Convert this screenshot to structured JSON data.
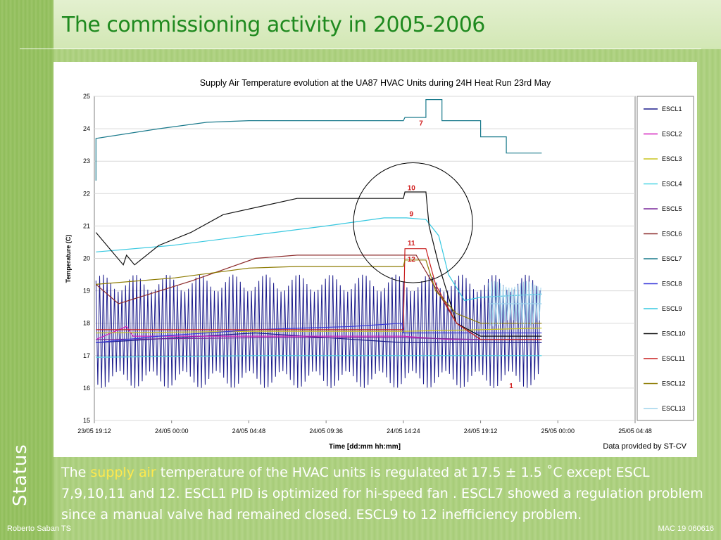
{
  "slide": {
    "title": "The commissioning activity in 2005-2006",
    "section_label": "Status",
    "caption_prefix": "The ",
    "caption_highlight": "supply air",
    "caption_rest": " temperature of the HVAC units is regulated at 17.5 ± 1.5 ˚C except ESCL 7,9,10,11 and 12. ESCL1 PID is optimized for hi-speed fan . ESCL7 showed a regulation problem since a manual valve had remained closed. ESCL9 to 12 inefficiency problem.",
    "footer_left": "Roberto Saban TS",
    "footer_right": "MAC 19  060616"
  },
  "colors": {
    "title": "#1f8a1f",
    "highlight": "#ffe94d",
    "background": "#a9cd7c"
  },
  "chart_data": {
    "type": "line",
    "title": "Supply Air Temperature evolution at the UA87 HVAC Units during 24H Heat Run 23rd May",
    "xlabel": "Time [dd:mm hh:mm]",
    "ylabel": "Temperature (C)",
    "source_note": "Data provided by ST-CV",
    "ylim": [
      15,
      25
    ],
    "y_ticks": [
      15,
      16,
      17,
      18,
      19,
      20,
      21,
      22,
      23,
      24,
      25
    ],
    "x_range_hours": [
      0,
      33.6
    ],
    "x_ticks": [
      {
        "label": "23/05 19:12",
        "h": 0
      },
      {
        "label": "24/05 00:00",
        "h": 4.8
      },
      {
        "label": "24/05 04:48",
        "h": 9.6
      },
      {
        "label": "24/05 09:36",
        "h": 14.4
      },
      {
        "label": "24/05 14:24",
        "h": 19.2
      },
      {
        "label": "24/05 19:12",
        "h": 24
      },
      {
        "label": "25/05 00:00",
        "h": 28.8
      },
      {
        "label": "25/05 04:48",
        "h": 33.6
      }
    ],
    "grid": "horizontal",
    "legend_position": "right",
    "annotations": [
      {
        "text": "7",
        "x": 20.3,
        "y": 24.1
      },
      {
        "text": "10",
        "x": 19.7,
        "y": 22.1
      },
      {
        "text": "9",
        "x": 19.7,
        "y": 21.3
      },
      {
        "text": "11",
        "x": 19.7,
        "y": 20.4
      },
      {
        "text": "12",
        "x": 19.7,
        "y": 19.9
      },
      {
        "text": "1",
        "x": 25.9,
        "y": 16.0
      }
    ],
    "highlight_circle": {
      "cx": 19.8,
      "cy": 21.1,
      "rx": 3.7,
      "ry": 1.85
    },
    "series": [
      {
        "name": "ESCL1",
        "color": "#1c1c8c",
        "style": "oscillating",
        "base": 17.75,
        "amp": 1.75,
        "start": 0.1,
        "end": 27.8,
        "points": [
          [
            0.1,
            17.4
          ],
          [
            10,
            17.7
          ],
          [
            19.2,
            17.4
          ],
          [
            22,
            17.4
          ],
          [
            27.8,
            17.4
          ]
        ]
      },
      {
        "name": "ESCL2",
        "color": "#d41fbd",
        "points": [
          [
            0.1,
            17.5
          ],
          [
            2.0,
            17.9
          ],
          [
            2.4,
            17.6
          ],
          [
            10,
            17.6
          ],
          [
            19.2,
            17.6
          ],
          [
            22,
            17.5
          ],
          [
            27.8,
            17.5
          ]
        ]
      },
      {
        "name": "ESCL3",
        "color": "#c9c41e",
        "points": [
          [
            0.1,
            17.7
          ],
          [
            10,
            17.75
          ],
          [
            19.2,
            17.75
          ],
          [
            24,
            17.8
          ],
          [
            27.8,
            17.85
          ]
        ]
      },
      {
        "name": "ESCL4",
        "color": "#4fd6e6",
        "points": [
          [
            0.1,
            16.95
          ],
          [
            10,
            17.0
          ],
          [
            19.2,
            17.0
          ],
          [
            24,
            17.0
          ],
          [
            27.8,
            17.0
          ]
        ]
      },
      {
        "name": "ESCL5",
        "color": "#7a2a9c",
        "points": [
          [
            0.1,
            17.5
          ],
          [
            10,
            17.55
          ],
          [
            19.2,
            17.55
          ],
          [
            24,
            17.5
          ],
          [
            27.8,
            17.5
          ]
        ]
      },
      {
        "name": "ESCL6",
        "color": "#8c2a2a",
        "points": [
          [
            0.1,
            19.2
          ],
          [
            1.5,
            18.6
          ],
          [
            6,
            19.3
          ],
          [
            10,
            20.0
          ],
          [
            12.6,
            20.1
          ],
          [
            19.2,
            20.1
          ],
          [
            20.0,
            20.1
          ],
          [
            22.5,
            18.0
          ],
          [
            24,
            17.5
          ],
          [
            27.8,
            17.5
          ]
        ]
      },
      {
        "name": "ESCL7",
        "color": "#1a7a8c",
        "points": [
          [
            0.1,
            22.4
          ],
          [
            0.1,
            23.7
          ],
          [
            4,
            24.0
          ],
          [
            7,
            24.2
          ],
          [
            9.6,
            24.25
          ],
          [
            16,
            24.25
          ],
          [
            19.2,
            24.25
          ],
          [
            19.3,
            24.35
          ],
          [
            20.6,
            24.35
          ],
          [
            20.6,
            24.9
          ],
          [
            21.6,
            24.9
          ],
          [
            21.6,
            24.25
          ],
          [
            24,
            24.25
          ],
          [
            24,
            23.75
          ],
          [
            25.6,
            23.75
          ],
          [
            25.6,
            23.25
          ],
          [
            27.8,
            23.25
          ]
        ]
      },
      {
        "name": "ESCL8",
        "color": "#3a3ad9",
        "points": [
          [
            0.1,
            17.4
          ],
          [
            4,
            17.6
          ],
          [
            10,
            17.8
          ],
          [
            16,
            17.9
          ],
          [
            19.1,
            18.0
          ],
          [
            19.2,
            17.7
          ],
          [
            24,
            17.7
          ],
          [
            27.8,
            17.7
          ]
        ]
      },
      {
        "name": "ESCL9",
        "color": "#37c8e0",
        "points": [
          [
            0.1,
            20.2
          ],
          [
            4.8,
            20.4
          ],
          [
            9.6,
            20.7
          ],
          [
            14.4,
            21.0
          ],
          [
            18,
            21.25
          ],
          [
            19.4,
            21.25
          ],
          [
            20.6,
            21.2
          ],
          [
            21.4,
            20.7
          ],
          [
            22.0,
            19.5
          ],
          [
            23.0,
            18.7
          ],
          [
            24,
            18.8
          ],
          [
            27.8,
            18.9
          ]
        ]
      },
      {
        "name": "ESCL10",
        "color": "#111111",
        "points": [
          [
            0.1,
            20.8
          ],
          [
            1.8,
            19.8
          ],
          [
            2.0,
            20.1
          ],
          [
            2.5,
            19.8
          ],
          [
            4,
            20.4
          ],
          [
            6,
            20.8
          ],
          [
            8,
            21.35
          ],
          [
            12.6,
            21.85
          ],
          [
            19.2,
            21.85
          ],
          [
            19.3,
            22.05
          ],
          [
            20.6,
            22.05
          ],
          [
            20.8,
            21.0
          ],
          [
            21.4,
            19.8
          ],
          [
            22.5,
            18.0
          ],
          [
            24,
            17.6
          ],
          [
            27.8,
            17.6
          ]
        ]
      },
      {
        "name": "ESCL11",
        "color": "#c81e1e",
        "points": [
          [
            0.1,
            17.8
          ],
          [
            10,
            17.8
          ],
          [
            19.2,
            17.8
          ],
          [
            19.3,
            20.3
          ],
          [
            20.6,
            20.3
          ],
          [
            21.2,
            19.2
          ],
          [
            22.5,
            18.0
          ],
          [
            24,
            17.5
          ],
          [
            27.8,
            17.5
          ]
        ]
      },
      {
        "name": "ESCL12",
        "color": "#8c7a00",
        "points": [
          [
            0.1,
            19.2
          ],
          [
            5,
            19.4
          ],
          [
            9.6,
            19.7
          ],
          [
            12.6,
            19.75
          ],
          [
            19.2,
            19.75
          ],
          [
            19.3,
            19.95
          ],
          [
            20.6,
            19.95
          ],
          [
            21.2,
            19.0
          ],
          [
            22.5,
            18.3
          ],
          [
            24,
            18.0
          ],
          [
            27.8,
            18.0
          ]
        ]
      },
      {
        "name": "ESCL13",
        "color": "#9fd4ec",
        "style": "oscillating",
        "base": 18.6,
        "amp": 0.7,
        "start": 24.5,
        "end": 27.8,
        "points": [
          [
            24.5,
            18.6
          ],
          [
            27.8,
            18.6
          ]
        ]
      }
    ]
  }
}
